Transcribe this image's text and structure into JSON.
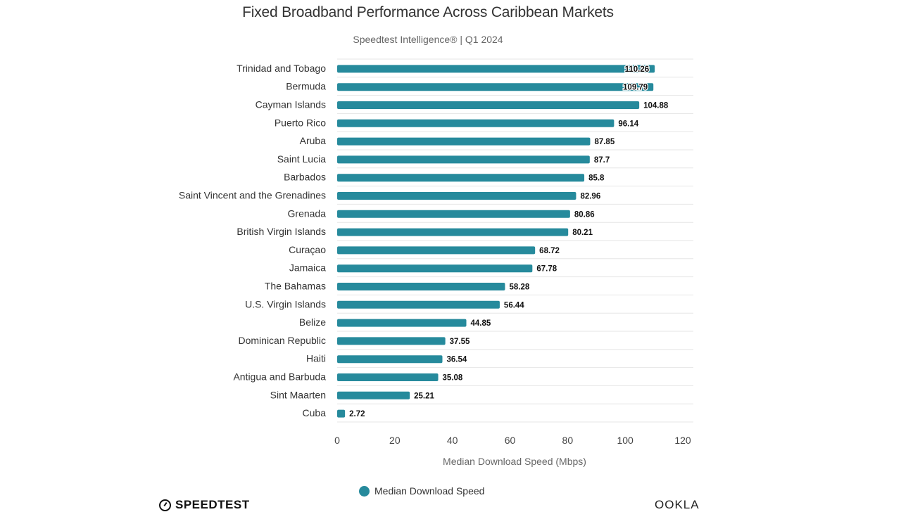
{
  "chart_data": {
    "type": "bar",
    "orientation": "horizontal",
    "title": "Fixed Broadband Performance Across Caribbean Markets",
    "subtitle": "Speedtest Intelligence® | Q1 2024",
    "xlabel": "Median Download Speed (Mbps)",
    "ylabel": "",
    "xlim": [
      0,
      120
    ],
    "xticks": [
      "0",
      "20",
      "40",
      "60",
      "80",
      "100",
      "120"
    ],
    "grid": "horizontal row separators",
    "legend": {
      "position": "bottom-center",
      "entries": [
        "Median Download Speed"
      ]
    },
    "bar_color": "#268a9c",
    "categories": [
      "Trinidad and Tobago",
      "Bermuda",
      "Cayman Islands",
      "Puerto Rico",
      "Aruba",
      "Saint Lucia",
      "Barbados",
      "Saint Vincent and the Grenadines",
      "Grenada",
      "British Virgin Islands",
      "Curaçao",
      "Jamaica",
      "The Bahamas",
      "U.S. Virgin Islands",
      "Belize",
      "Dominican Republic",
      "Haiti",
      "Antigua and Barbuda",
      "Sint Maarten",
      "Cuba"
    ],
    "series": [
      {
        "name": "Median Download Speed",
        "values": [
          110.26,
          109.79,
          104.88,
          96.14,
          87.85,
          87.7,
          85.8,
          82.96,
          80.86,
          80.21,
          68.72,
          67.78,
          58.28,
          56.44,
          44.85,
          37.55,
          36.54,
          35.08,
          25.21,
          2.72
        ],
        "labels": [
          "110.26",
          "109.79",
          "104.88",
          "96.14",
          "87.85",
          "87.7",
          "85.8",
          "82.96",
          "80.86",
          "80.21",
          "68.72",
          "67.78",
          "58.28",
          "56.44",
          "44.85",
          "37.55",
          "36.54",
          "35.08",
          "25.21",
          "2.72"
        ]
      }
    ]
  },
  "branding": {
    "left_logo_text": "SPEEDTEST",
    "right_logo_text": "OOKLA"
  }
}
